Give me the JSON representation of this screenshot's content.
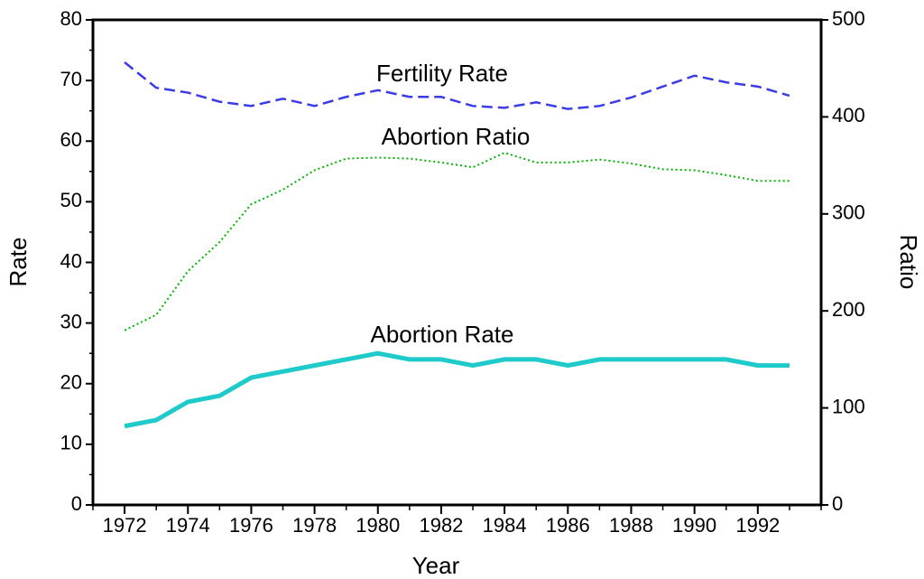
{
  "chart_data": {
    "type": "line",
    "x_label": "Year",
    "y_label": "Rate",
    "y2_label": "Ratio",
    "x": [
      1972,
      1973,
      1974,
      1975,
      1976,
      1977,
      1978,
      1979,
      1980,
      1981,
      1982,
      1983,
      1984,
      1985,
      1986,
      1987,
      1988,
      1989,
      1990,
      1991,
      1992,
      1993
    ],
    "series": [
      {
        "name": "Fertility Rate",
        "color": "#3c3ce6",
        "style": "dashed",
        "values": [
          73,
          68.8,
          68,
          66.5,
          65.8,
          67,
          65.8,
          67.3,
          68.4,
          67.3,
          67.3,
          65.8,
          65.5,
          66.4,
          65.3,
          65.8,
          67.2,
          69,
          70.8,
          69.7,
          69,
          67.5
        ]
      },
      {
        "name": "Abortion Ratio",
        "color": "#00b400",
        "style": "dotted",
        "axis": "y2",
        "values": [
          180,
          196,
          241,
          271,
          310,
          325,
          345,
          357,
          358,
          357,
          353,
          348,
          363,
          353,
          353,
          356,
          352,
          346,
          345,
          340,
          334,
          334
        ]
      },
      {
        "name": "Abortion Rate",
        "color": "#1ecaca",
        "style": "solid",
        "values": [
          13,
          14,
          17,
          18,
          21,
          22,
          23,
          24,
          25,
          24,
          24,
          23,
          24,
          24,
          23,
          24,
          24,
          24,
          24,
          24,
          23,
          23
        ]
      }
    ],
    "xlim": [
      1971,
      1994
    ],
    "xticks": [
      1972,
      1974,
      1976,
      1978,
      1980,
      1982,
      1984,
      1986,
      1988,
      1990,
      1992
    ],
    "xminorticks": [
      1971,
      1972,
      1973,
      1974,
      1975,
      1976,
      1977,
      1978,
      1979,
      1980,
      1981,
      1982,
      1983,
      1984,
      1985,
      1986,
      1987,
      1988,
      1989,
      1990,
      1991,
      1992,
      1993,
      1994
    ],
    "ylim": [
      0,
      80
    ],
    "yticks": [
      0,
      10,
      20,
      30,
      40,
      50,
      60,
      70,
      80
    ],
    "yminorticks": [
      5,
      15,
      25,
      35,
      45,
      55,
      65,
      75
    ],
    "y2lim": [
      0,
      500
    ],
    "y2ticks": [
      0,
      100,
      200,
      300,
      400,
      500
    ]
  }
}
